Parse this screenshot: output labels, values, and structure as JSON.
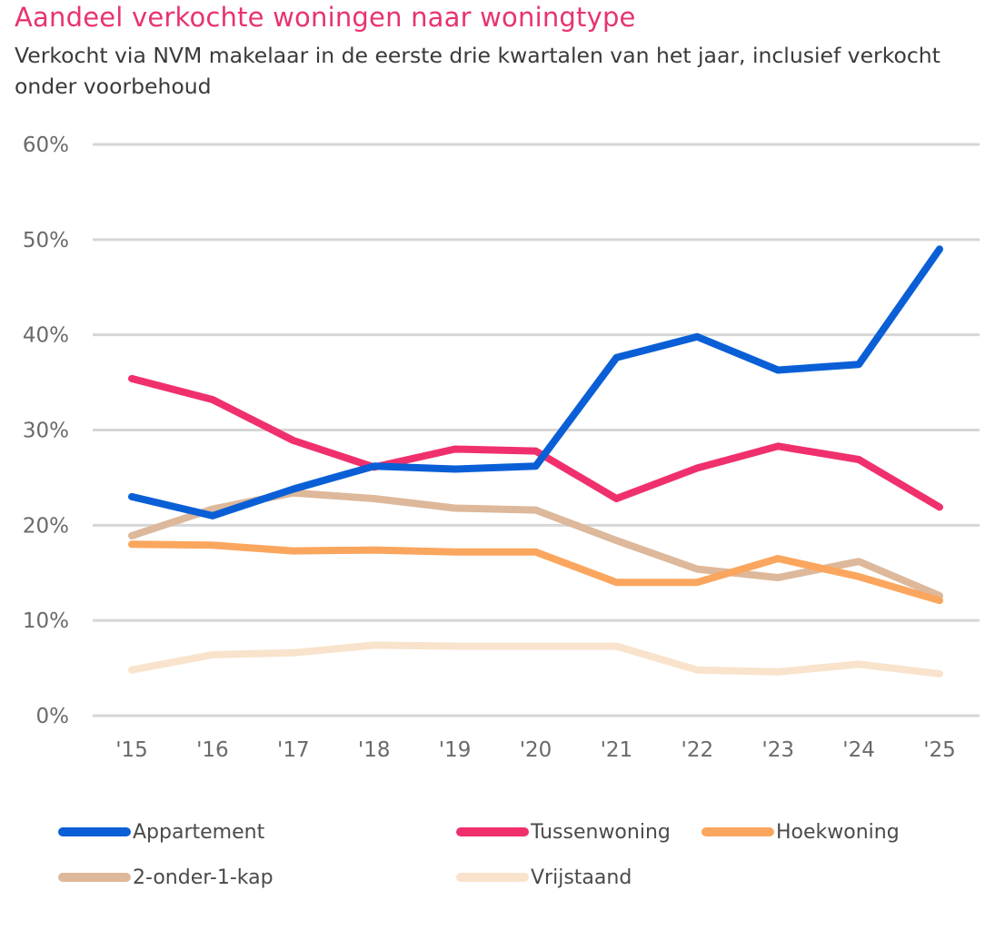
{
  "header": {
    "title": "Aandeel verkochte woningen naar woningtype",
    "subtitle": "Verkocht via NVM makelaar in de eerste drie kwartalen van het jaar, inclusief verkocht onder voorbehoud"
  },
  "chart_data": {
    "type": "line",
    "title": "Aandeel verkochte woningen naar woningtype",
    "subtitle": "Verkocht via NVM makelaar in de eerste drie kwartalen van het jaar, inclusief verkocht onder voorbehoud",
    "xlabel": "",
    "ylabel": "",
    "x": [
      "'15",
      "'16",
      "'17",
      "'18",
      "'19",
      "'20",
      "'21",
      "'22",
      "'23",
      "'24",
      "'25"
    ],
    "ylim": [
      0,
      60
    ],
    "yticks": [
      0,
      10,
      20,
      30,
      40,
      50,
      60
    ],
    "ytick_labels": [
      "0%",
      "10%",
      "20%",
      "30%",
      "40%",
      "50%",
      "60%"
    ],
    "grid": true,
    "legend_position": "bottom",
    "series": [
      {
        "name": "Appartement",
        "color": "#0a5fd6",
        "values": [
          23.0,
          21.0,
          23.8,
          26.2,
          25.9,
          26.2,
          37.6,
          39.8,
          36.3,
          36.9,
          49.0
        ]
      },
      {
        "name": "Tussenwoning",
        "color": "#f0306c",
        "values": [
          35.4,
          33.2,
          28.9,
          26.1,
          28.0,
          27.8,
          22.8,
          26.0,
          28.3,
          26.9,
          21.9
        ]
      },
      {
        "name": "Hoekwoning",
        "color": "#fba65e",
        "values": [
          18.0,
          17.9,
          17.3,
          17.4,
          17.2,
          17.2,
          14.0,
          14.0,
          16.5,
          14.6,
          12.1
        ]
      },
      {
        "name": "2-onder-1-kap",
        "color": "#ddb89a",
        "values": [
          18.9,
          21.7,
          23.4,
          22.8,
          21.8,
          21.6,
          18.4,
          15.4,
          14.5,
          16.2,
          12.6
        ]
      },
      {
        "name": "Vrijstaand",
        "color": "#f9e3cc",
        "values": [
          4.8,
          6.4,
          6.6,
          7.4,
          7.3,
          7.3,
          7.3,
          4.8,
          4.6,
          5.4,
          4.4
        ]
      }
    ]
  }
}
